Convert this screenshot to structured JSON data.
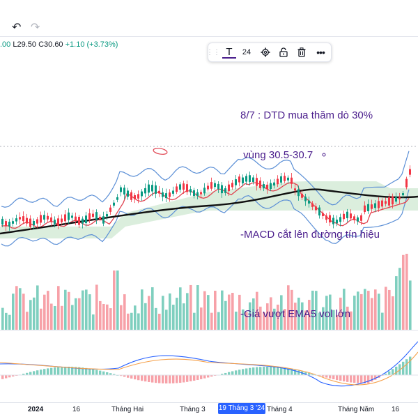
{
  "ohlc": {
    "open_fragment": ".00",
    "low": "L29.50",
    "close": "C30.60",
    "change": "+1.10 (+3.73%)"
  },
  "drawing_toolbar": {
    "text_tool_icon": "T",
    "font_size": "24"
  },
  "annotation": {
    "lines": [
      "8/7 : DTD mua thăm dò 30%",
      " vùng 30.5-30.7",
      "",
      "-MACD cắt lên đường tín hiệu",
      "",
      "-Giá vượt EMA5 vol lớn"
    ]
  },
  "xaxis": {
    "labels": [
      "2024",
      "16",
      "Tháng Hai",
      "Tháng 3",
      "Tháng 4",
      "Tháng Năm",
      "16"
    ],
    "highlighted": "19 Tháng 3 '24"
  },
  "colors": {
    "up": "#089981",
    "down": "#f23645",
    "vol_up": "#7fcfbf",
    "vol_down": "#f7a1a8",
    "annotation": "#4a1d8c",
    "highlight": "#2962ff"
  },
  "icons": [
    "undo-icon",
    "redo-icon",
    "drag-handle-icon",
    "text-tool-icon",
    "settings-icon",
    "lock-icon",
    "trash-icon",
    "more-icon"
  ]
}
